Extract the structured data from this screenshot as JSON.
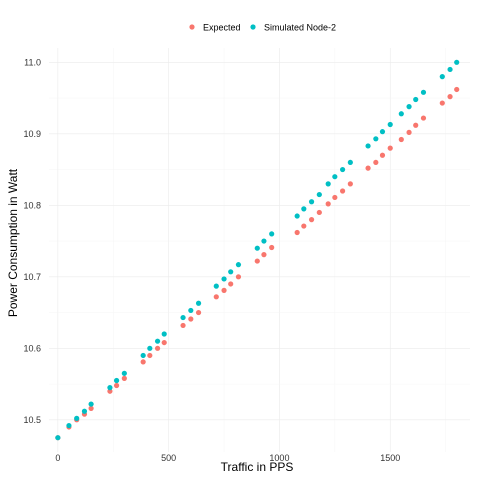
{
  "chart_data": {
    "type": "scatter",
    "title": "",
    "xlabel": "Traffic in PPS",
    "ylabel": "Power Consumption in Watt",
    "xlim": [
      -40,
      1860
    ],
    "ylim": [
      10.455,
      11.02
    ],
    "x_ticks": [
      0,
      500,
      1000,
      1500
    ],
    "y_ticks": [
      10.5,
      10.6,
      10.7,
      10.8,
      10.9,
      11.0
    ],
    "y_tick_labels": [
      "10.5",
      "10.6",
      "10.7",
      "10.8",
      "10.9",
      "11.0"
    ],
    "grid": true,
    "legend_position": "top",
    "series": [
      {
        "name": "Expected",
        "color": "#F8766D",
        "x": [
          0,
          50,
          85,
          120,
          150,
          235,
          265,
          300,
          385,
          415,
          450,
          480,
          565,
          600,
          635,
          715,
          750,
          780,
          815,
          900,
          930,
          965,
          1080,
          1110,
          1145,
          1180,
          1220,
          1250,
          1285,
          1320,
          1400,
          1435,
          1465,
          1500,
          1550,
          1585,
          1615,
          1650,
          1735,
          1770,
          1800
        ],
        "y": [
          10.475,
          10.49,
          10.5,
          10.508,
          10.516,
          10.54,
          10.548,
          10.558,
          10.581,
          10.59,
          10.6,
          10.608,
          10.632,
          10.641,
          10.65,
          10.672,
          10.681,
          10.69,
          10.7,
          10.722,
          10.731,
          10.741,
          10.762,
          10.771,
          10.78,
          10.79,
          10.802,
          10.811,
          10.82,
          10.83,
          10.852,
          10.86,
          10.87,
          10.88,
          10.892,
          10.902,
          10.912,
          10.922,
          10.943,
          10.952,
          10.962
        ]
      },
      {
        "name": "Simulated Node-2",
        "color": "#00BFC4",
        "x": [
          0,
          50,
          85,
          120,
          150,
          235,
          265,
          300,
          385,
          415,
          450,
          480,
          565,
          600,
          635,
          715,
          750,
          780,
          815,
          900,
          930,
          965,
          1080,
          1110,
          1145,
          1180,
          1220,
          1250,
          1285,
          1320,
          1400,
          1435,
          1465,
          1500,
          1550,
          1585,
          1615,
          1650,
          1735,
          1770,
          1800
        ],
        "y": [
          10.475,
          10.492,
          10.502,
          10.512,
          10.522,
          10.545,
          10.555,
          10.565,
          10.59,
          10.6,
          10.61,
          10.62,
          10.643,
          10.653,
          10.663,
          10.687,
          10.697,
          10.707,
          10.717,
          10.74,
          10.75,
          10.76,
          10.785,
          10.795,
          10.805,
          10.815,
          10.83,
          10.84,
          10.85,
          10.86,
          10.883,
          10.893,
          10.903,
          10.913,
          10.928,
          10.938,
          10.948,
          10.958,
          10.98,
          10.99,
          11.0
        ]
      }
    ]
  }
}
